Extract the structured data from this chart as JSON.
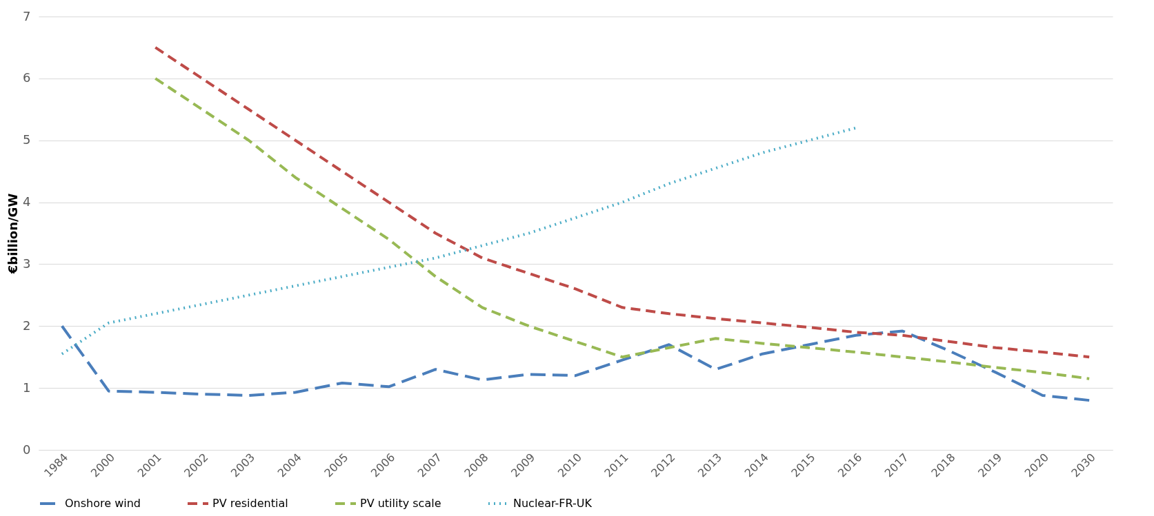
{
  "chart_data": {
    "type": "line",
    "ylabel": "€billion/GW",
    "categories": [
      "1984",
      "2000",
      "2001",
      "2002",
      "2003",
      "2004",
      "2005",
      "2006",
      "2007",
      "2008",
      "2009",
      "2010",
      "2011",
      "2012",
      "2013",
      "2014",
      "2015",
      "2016",
      "2017",
      "2018",
      "2019",
      "2020",
      "2030"
    ],
    "series": [
      {
        "name": "Onshore wind",
        "color": "#4a7ebb",
        "line_style": "dashed",
        "values": [
          2.0,
          0.95,
          0.93,
          0.9,
          0.88,
          0.93,
          1.08,
          1.02,
          1.3,
          1.13,
          1.22,
          1.2,
          1.45,
          1.7,
          1.3,
          1.55,
          1.7,
          1.85,
          1.92,
          1.6,
          1.25,
          0.88,
          0.8
        ]
      },
      {
        "name": "PV residential",
        "color": "#be4b48",
        "line_style": "dashed",
        "values": [
          null,
          null,
          6.5,
          6.0,
          5.5,
          5.0,
          4.5,
          4.0,
          3.5,
          3.1,
          2.85,
          2.6,
          2.3,
          2.2,
          2.12,
          2.05,
          1.98,
          1.9,
          1.85,
          1.75,
          1.65,
          1.58,
          1.5
        ]
      },
      {
        "name": "PV utility scale",
        "color": "#98b954",
        "line_style": "dashed",
        "values": [
          null,
          null,
          6.0,
          5.5,
          5.0,
          4.4,
          3.9,
          3.4,
          2.8,
          2.3,
          2.0,
          1.75,
          1.5,
          1.65,
          1.8,
          1.72,
          1.65,
          1.58,
          1.5,
          1.42,
          1.33,
          1.25,
          1.15
        ]
      },
      {
        "name": "Nuclear-FR-UK",
        "color": "#4bacc6",
        "line_style": "dotted",
        "values": [
          1.55,
          2.05,
          2.2,
          2.35,
          2.5,
          2.65,
          2.8,
          2.95,
          3.1,
          3.3,
          3.5,
          3.75,
          4.0,
          4.3,
          4.55,
          4.8,
          5.0,
          5.2,
          null,
          null,
          null,
          null,
          null
        ]
      }
    ],
    "ylim": [
      0,
      7
    ],
    "yticks": [
      0,
      1,
      2,
      3,
      4,
      5,
      6,
      7
    ],
    "grid": "y",
    "legend": "bottom"
  }
}
